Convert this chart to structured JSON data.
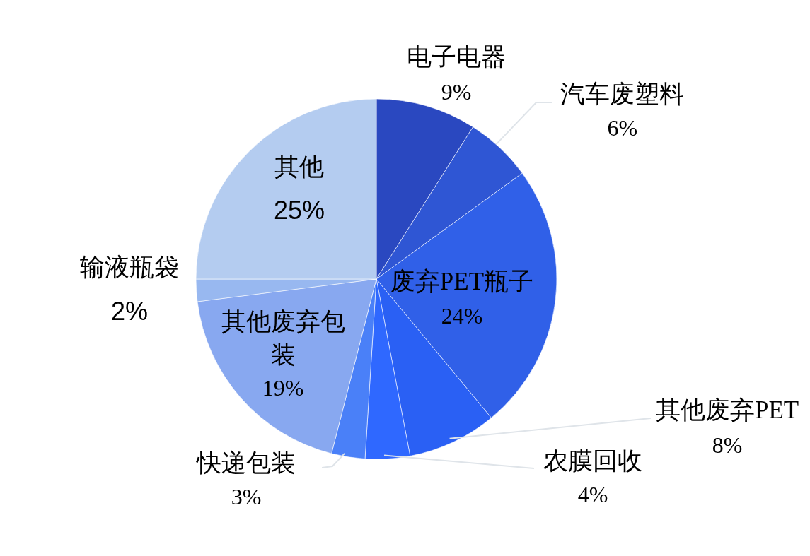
{
  "chart_data": {
    "type": "pie",
    "categories": [
      "电子电器",
      "汽车废塑料",
      "废弃PET瓶子",
      "其他废弃PET",
      "农膜回收",
      "快递包装",
      "其他废弃包装",
      "输液瓶袋",
      "其他"
    ],
    "values": [
      9,
      6,
      24,
      8,
      4,
      3,
      19,
      2,
      25
    ],
    "value_labels": [
      "9%",
      "6%",
      "24%",
      "8%",
      "4%",
      "3%",
      "19%",
      "2%",
      "25%"
    ],
    "colors": [
      "#2a48c0",
      "#2f56d4",
      "#3060e8",
      "#2a60f4",
      "#2f68ff",
      "#4a80f8",
      "#88a8f0",
      "#98b8f0",
      "#b4ccf0"
    ]
  }
}
